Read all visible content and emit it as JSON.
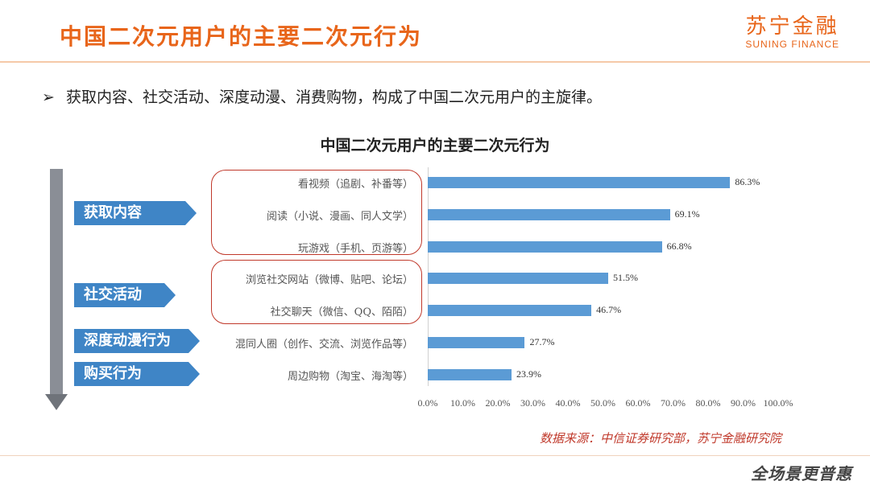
{
  "header": {
    "title": "中国二次元用户的主要二次元行为",
    "logo_cn": "苏宁金融",
    "logo_en": "SUNING FINANCE"
  },
  "bullet": {
    "marker": "➢",
    "text": "获取内容、社交活动、深度动漫、消费购物，构成了中国二次元用户的主旋律。"
  },
  "categories": [
    "获取内容",
    "社交活动",
    "深度动漫行为",
    "购买行为"
  ],
  "chart_data": {
    "type": "bar",
    "orientation": "horizontal",
    "title": "中国二次元用户的主要二次元行为",
    "categories": [
      "看视频（追剧、补番等）",
      "阅读（小说、漫画、同人文学）",
      "玩游戏（手机、页游等）",
      "浏览社交网站（微博、贴吧、论坛）",
      "社交聊天（微信、QQ、陌陌）",
      "混同人圈（创作、交流、浏览作品等）",
      "周边购物（淘宝、海淘等）"
    ],
    "values": [
      86.3,
      69.1,
      66.8,
      51.5,
      46.7,
      27.7,
      23.9
    ],
    "value_labels": [
      "86.3%",
      "69.1%",
      "66.8%",
      "51.5%",
      "46.7%",
      "27.7%",
      "23.9%"
    ],
    "xlim": [
      0,
      100
    ],
    "x_ticks": [
      "0.0%",
      "10.0%",
      "20.0%",
      "30.0%",
      "40.0%",
      "50.0%",
      "60.0%",
      "70.0%",
      "80.0%",
      "90.0%",
      "100.0%"
    ],
    "bar_color": "#5b9bd5",
    "grid": false
  },
  "source": "数据来源：中信证券研究部，苏宁金融研究院",
  "slogan": "全场景更普惠",
  "colors": {
    "accent": "#e8651a",
    "category_fill": "#3f85c6",
    "group_border": "#c0392b"
  }
}
